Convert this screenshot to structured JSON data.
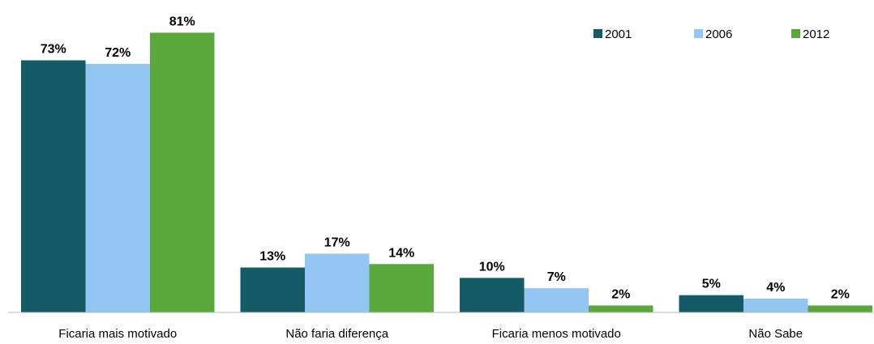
{
  "chart_data": {
    "type": "bar",
    "categories": [
      "Ficaria mais motivado",
      "Não faria diferença",
      "Ficaria menos motivado",
      "Não Sabe"
    ],
    "series": [
      {
        "name": "2001",
        "color": "#145b66",
        "values": [
          73,
          13,
          10,
          5
        ],
        "value_labels": [
          "73%",
          "13%",
          "10%",
          "5%"
        ]
      },
      {
        "name": "2006",
        "color": "#93c6f2",
        "values": [
          72,
          17,
          7,
          4
        ],
        "value_labels": [
          "72%",
          "17%",
          "7%",
          "4%"
        ]
      },
      {
        "name": "2012",
        "color": "#5aa83c",
        "values": [
          81,
          14,
          2,
          2
        ],
        "value_labels": [
          "81%",
          "14%",
          "2%",
          "2%"
        ]
      }
    ],
    "ylim": [
      0,
      90
    ],
    "legend": "top-right"
  }
}
